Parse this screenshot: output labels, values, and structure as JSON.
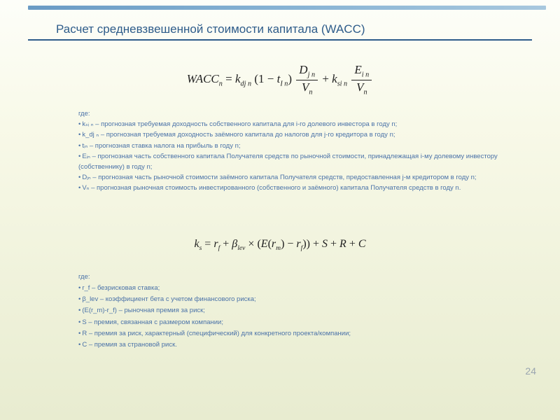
{
  "title": "Расчет средневзвешенной стоимости капитала (WACC)",
  "pageNumber": "24",
  "colors": {
    "titleColor": "#2e5c8a",
    "bodyTextColor": "#4a72a8",
    "formulaColor": "#222222",
    "barGradientStart": "#6a9bc4",
    "barGradientEnd": "#a8c8de",
    "bgGradientTop": "#fdfef9",
    "bgGradientBottom": "#e8ecd0"
  },
  "formula1": {
    "lhs": "WACC",
    "lhsSub": "n",
    "eq": "=",
    "k_dj": "k",
    "k_dj_sub": "dj n",
    "open": "(1 −",
    "t": "t",
    "t_sub": "I n",
    "close": ")",
    "frac1_num_sym": "D",
    "frac1_num_sub": "j n",
    "frac1_den_sym": "V",
    "frac1_den_sub": "n",
    "plus": "+",
    "k_si": "k",
    "k_si_sub": "si n",
    "frac2_num_sym": "E",
    "frac2_num_sub": "i n",
    "frac2_den_sym": "V",
    "frac2_den_sub": "n"
  },
  "where1Label": "где:",
  "where1": [
    "kₛᵢ ₙ – прогнозная требуемая доходность собственного капитала для i-го долевого инвестора в году n;",
    "k_dj ₙ – прогнозная требуемая доходность заёмного капитала до налогов для j-го кредитора в году n;",
    "tᵢₙ  – прогнозная ставка налога на прибыль в году n;",
    "Eᵢₙ – прогнозная часть собственного капитала Получателя средств по рыночной стоимости, принадлежащая i-му долевому инвестору (собственнику) в году n;",
    "Dⱼₙ – прогнозная часть рыночной стоимости заёмного капитала Получателя средств, предоставленная j-м кредитором в году n;",
    "Vₙ – прогнозная рыночная стоимость инвестированного (собственного и заёмного) капитала Получателя средств в году n."
  ],
  "formula2": {
    "text": "kₛ = r_f + β_lev × (E(r_m) − r_f)) + S + R + C",
    "k": "k",
    "k_sub": "s",
    "eq": "=",
    "rf": "r",
    "rf_sub": "f",
    "plus1": "+",
    "beta": "β",
    "beta_sub": "lev",
    "times": "×",
    "open": "(",
    "E": "E",
    "Eopen": "(",
    "rm": "r",
    "rm_sub": "m",
    "Eclose": ")",
    "minus": "−",
    "rf2": "r",
    "rf2_sub": "f",
    "close": "))",
    "plus2": "+",
    "S": "S",
    "plus3": "+",
    "R": "R",
    "plus4": "+",
    "C": "C"
  },
  "where2Label": "где:",
  "where2": [
    "r_f – безрисковая ставка;",
    "β_lev – коэффициент бета с учетом финансового риска;",
    "(E(r_m)-r_f) – рыночная премия за риск;",
    "S – премия, связанная с размером компании;",
    "R – премия за риск, характерный (специфический) для конкретного проекта/компании;",
    "C – премия за страновой риск."
  ],
  "typography": {
    "titleFontSize": 17,
    "bodyFontSize": 9.5,
    "formulaFontSize": 17,
    "fontFamily": "Arial",
    "formulaFontFamily": "Times New Roman"
  }
}
